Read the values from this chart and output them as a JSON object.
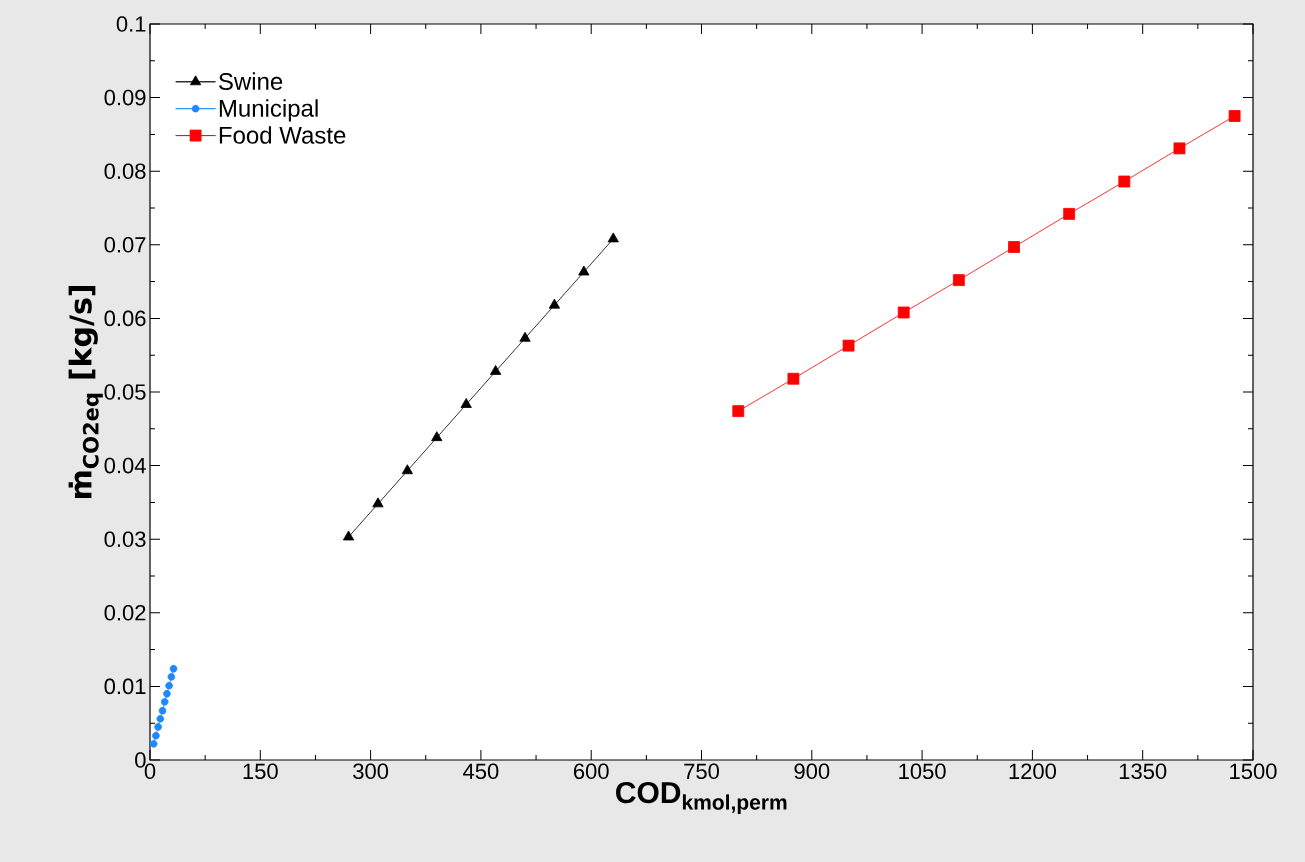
{
  "chart_data": {
    "type": "line",
    "xlabel": "COD$_{kmol,perm}$",
    "ylabel": "ṁ$_{CO2eq}$ [kg/s]",
    "xlim": [
      0,
      1500
    ],
    "ylim": [
      0,
      0.1
    ],
    "xticks": [
      0,
      150,
      300,
      450,
      600,
      750,
      900,
      1050,
      1200,
      1350,
      1500
    ],
    "yticks": [
      0,
      0.01,
      0.02,
      0.03,
      0.04,
      0.05,
      0.06,
      0.07,
      0.08,
      0.09,
      0.1
    ],
    "grid": false,
    "legend": "top left",
    "series": [
      {
        "name": "Swine",
        "color": "#000000",
        "marker": "triangle",
        "x": [
          270,
          310,
          350,
          390,
          430,
          470,
          510,
          550,
          590,
          630
        ],
        "values": [
          0.0303,
          0.0348,
          0.0393,
          0.0438,
          0.0483,
          0.0528,
          0.0573,
          0.0618,
          0.0663,
          0.0708
        ]
      },
      {
        "name": "Municipal",
        "color": "#1e88ff",
        "marker": "circle",
        "x": [
          5,
          8,
          11,
          14,
          17,
          20,
          23,
          26,
          29,
          32
        ],
        "values": [
          0.0022,
          0.0033,
          0.0045,
          0.0056,
          0.0067,
          0.0079,
          0.009,
          0.0101,
          0.0113,
          0.0124
        ]
      },
      {
        "name": "Food Waste",
        "color": "#ff0000",
        "marker": "square",
        "x": [
          800,
          875,
          950,
          1025,
          1100,
          1175,
          1250,
          1325,
          1400,
          1475
        ],
        "values": [
          0.0474,
          0.0518,
          0.0563,
          0.0608,
          0.0652,
          0.0697,
          0.0742,
          0.0786,
          0.0831,
          0.0875
        ]
      }
    ]
  }
}
